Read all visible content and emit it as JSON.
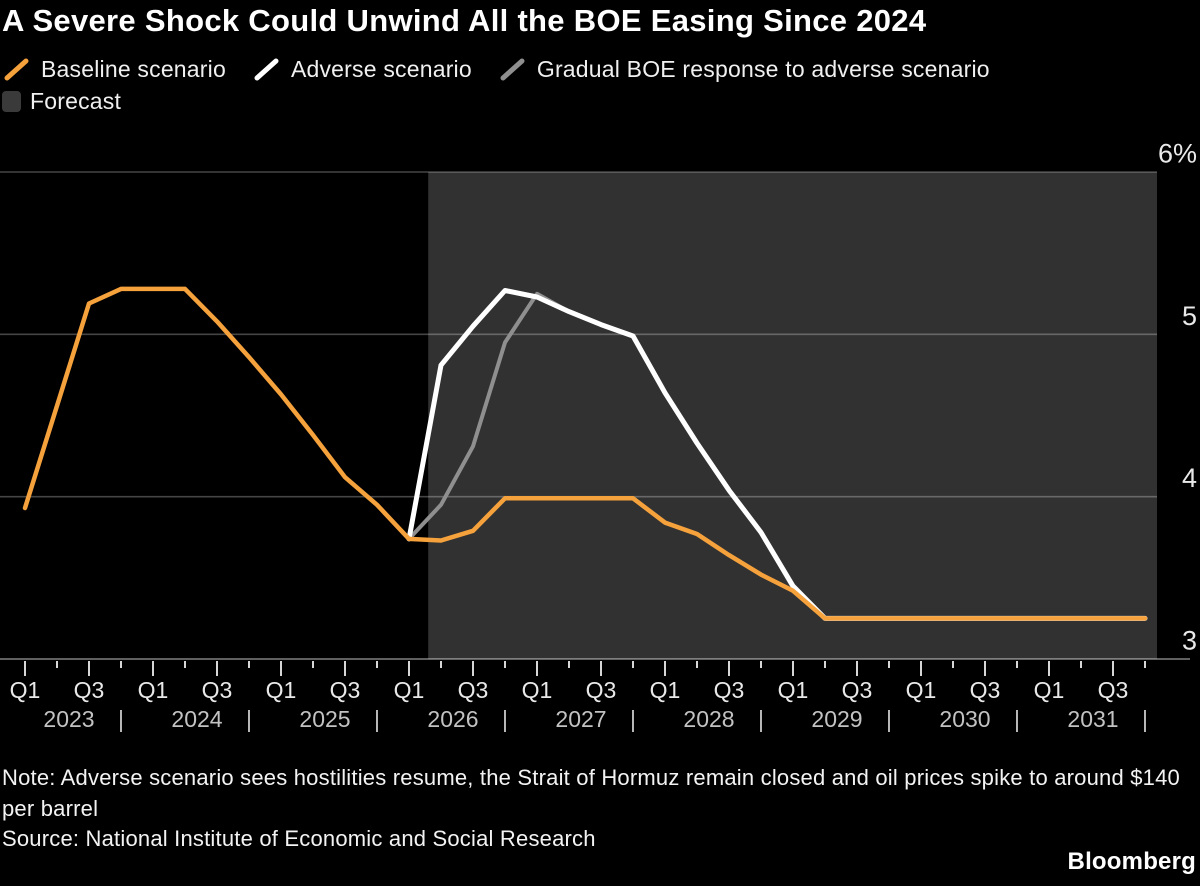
{
  "title": "A Severe Shock Could Unwind All the BOE Easing Since 2024",
  "legend": {
    "items": [
      {
        "label": "Baseline scenario",
        "color": "#F5A13C",
        "type": "line"
      },
      {
        "label": "Adverse scenario",
        "color": "#FFFFFF",
        "type": "line"
      },
      {
        "label": "Gradual BOE response to adverse scenario",
        "color": "#8F8F8F",
        "type": "line"
      },
      {
        "label": "Forecast",
        "color": "#3A3A3A",
        "type": "region"
      }
    ]
  },
  "footer": {
    "note": "Note: Adverse scenario sees hostilities resume, the Strait of Hormuz remain closed and oil prices spike to around $140 per barrel",
    "source": "Source: National Institute of Economic and Social Research",
    "brand": "Bloomberg"
  },
  "chart_data": {
    "type": "line",
    "title": "A Severe Shock Could Unwind All the BOE Easing Since 2024",
    "unit": "%",
    "x_axis": {
      "start": "2023-Q1",
      "quarters_total": 36,
      "tick_labels": [
        "Q1",
        "Q3"
      ],
      "years": [
        "2023",
        "2024",
        "2025",
        "2026",
        "2027",
        "2028",
        "2029",
        "2030",
        "2031"
      ],
      "year_separator": "|"
    },
    "y_axis": {
      "min": 3,
      "max": 6,
      "grid": true,
      "ticks": [
        {
          "label": "6%",
          "value": 6
        },
        {
          "label": "5",
          "value": 5
        },
        {
          "label": "4",
          "value": 4
        },
        {
          "label": "3",
          "value": 3
        }
      ]
    },
    "forecast_region": {
      "label": "Forecast",
      "start_quarter": "2026-Q2",
      "start_quarter_index": 12.6,
      "color": "#313131"
    },
    "series": [
      {
        "name": "Baseline scenario",
        "color": "#F5A13C",
        "start_quarter_index": 0,
        "values": [
          3.93,
          4.56,
          5.19,
          5.28,
          5.28,
          5.28,
          5.08,
          4.86,
          4.63,
          4.38,
          4.12,
          3.95,
          3.74,
          3.73,
          3.79,
          3.99,
          3.99,
          3.99,
          3.99,
          3.99,
          3.84,
          3.77,
          3.64,
          3.52,
          3.42,
          3.25,
          3.25,
          3.25,
          3.25,
          3.25,
          3.25,
          3.25,
          3.25,
          3.25,
          3.25,
          3.25
        ]
      },
      {
        "name": "Adverse scenario",
        "color": "#FFFFFF",
        "start_quarter_index": 12,
        "values": [
          3.74,
          4.81,
          5.05,
          5.27,
          5.23,
          5.14,
          5.06,
          4.99,
          4.64,
          4.33,
          4.04,
          3.78,
          3.45,
          3.25,
          3.25,
          3.25,
          3.25,
          3.25,
          3.25,
          3.25,
          3.25,
          3.25,
          3.25,
          3.25
        ]
      },
      {
        "name": "Gradual BOE response to adverse scenario",
        "color": "#8F8F8F",
        "start_quarter_index": 12,
        "values": [
          3.74,
          3.95,
          4.31,
          4.95,
          5.25,
          5.14,
          5.06,
          4.99,
          4.64,
          4.33,
          4.04,
          3.78,
          3.44,
          3.25,
          3.25,
          3.25,
          3.25,
          3.25,
          3.25,
          3.25,
          3.25,
          3.25,
          3.25,
          3.25
        ]
      }
    ]
  }
}
